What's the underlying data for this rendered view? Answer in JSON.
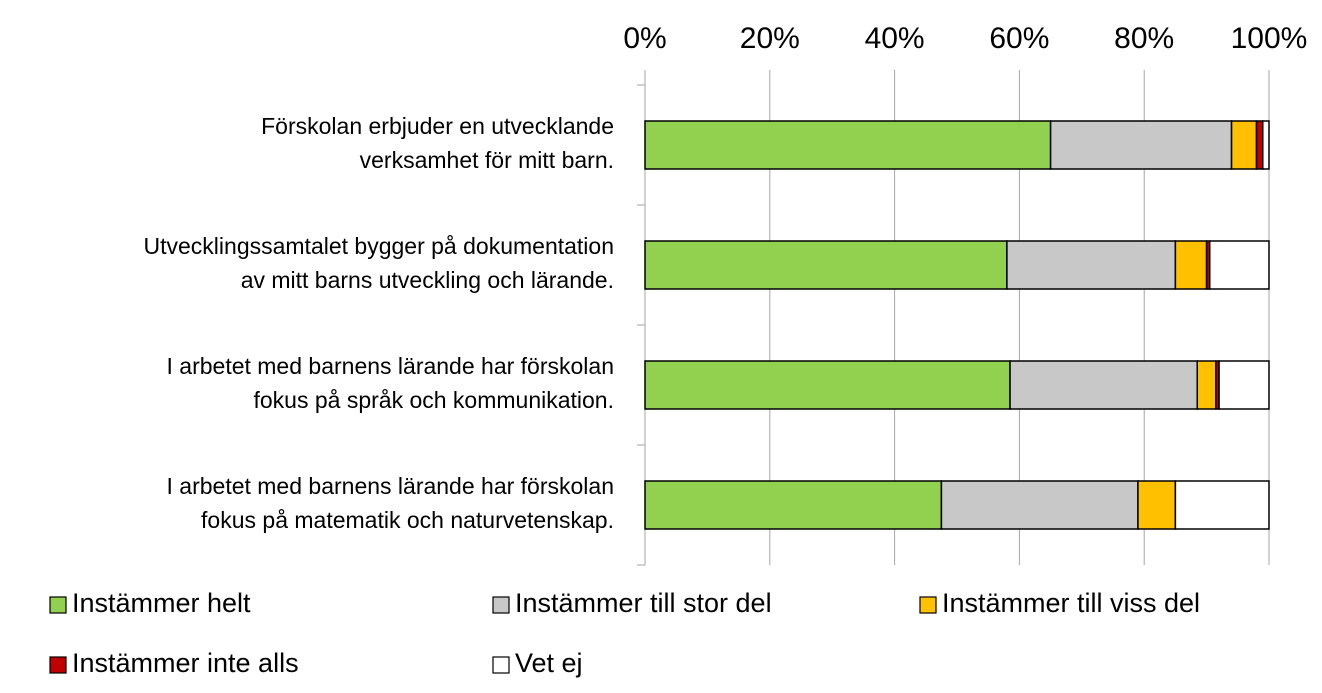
{
  "chart_data": {
    "type": "stacked-barh",
    "categories": [
      "Förskolan erbjuder en utvecklande\nverksamhet för mitt barn.",
      "Utvecklingssamtalet bygger på dokumentation\nav mitt barns utveckling och lärande.",
      "I arbetet med barnens lärande har förskolan\nfokus på språk och kommunikation.",
      "I arbetet med barnens lärande har förskolan\nfokus på matematik och naturvetenskap."
    ],
    "series": [
      {
        "name": "Instämmer helt",
        "color": "#92d050",
        "values": [
          65,
          58,
          58.5,
          47.5
        ]
      },
      {
        "name": "Instämmer till stor del",
        "color": "#c8c8c8",
        "values": [
          29,
          27,
          30,
          31.5
        ]
      },
      {
        "name": "Instämmer till viss del",
        "color": "#ffc000",
        "values": [
          4,
          5,
          3,
          6
        ]
      },
      {
        "name": "Instämmer inte alls",
        "color": "#c00000",
        "values": [
          1,
          0.5,
          0.5,
          0
        ]
      },
      {
        "name": "Vet ej",
        "color": "#ffffff",
        "values": [
          1,
          9.5,
          8,
          15
        ]
      }
    ],
    "xlim": [
      0,
      100
    ],
    "xticks": [
      {
        "value": 0,
        "label": "0%"
      },
      {
        "value": 20,
        "label": "20%"
      },
      {
        "value": 40,
        "label": "40%"
      },
      {
        "value": 60,
        "label": "60%"
      },
      {
        "value": 80,
        "label": "80%"
      },
      {
        "value": 100,
        "label": "100%"
      }
    ],
    "grid": true
  }
}
